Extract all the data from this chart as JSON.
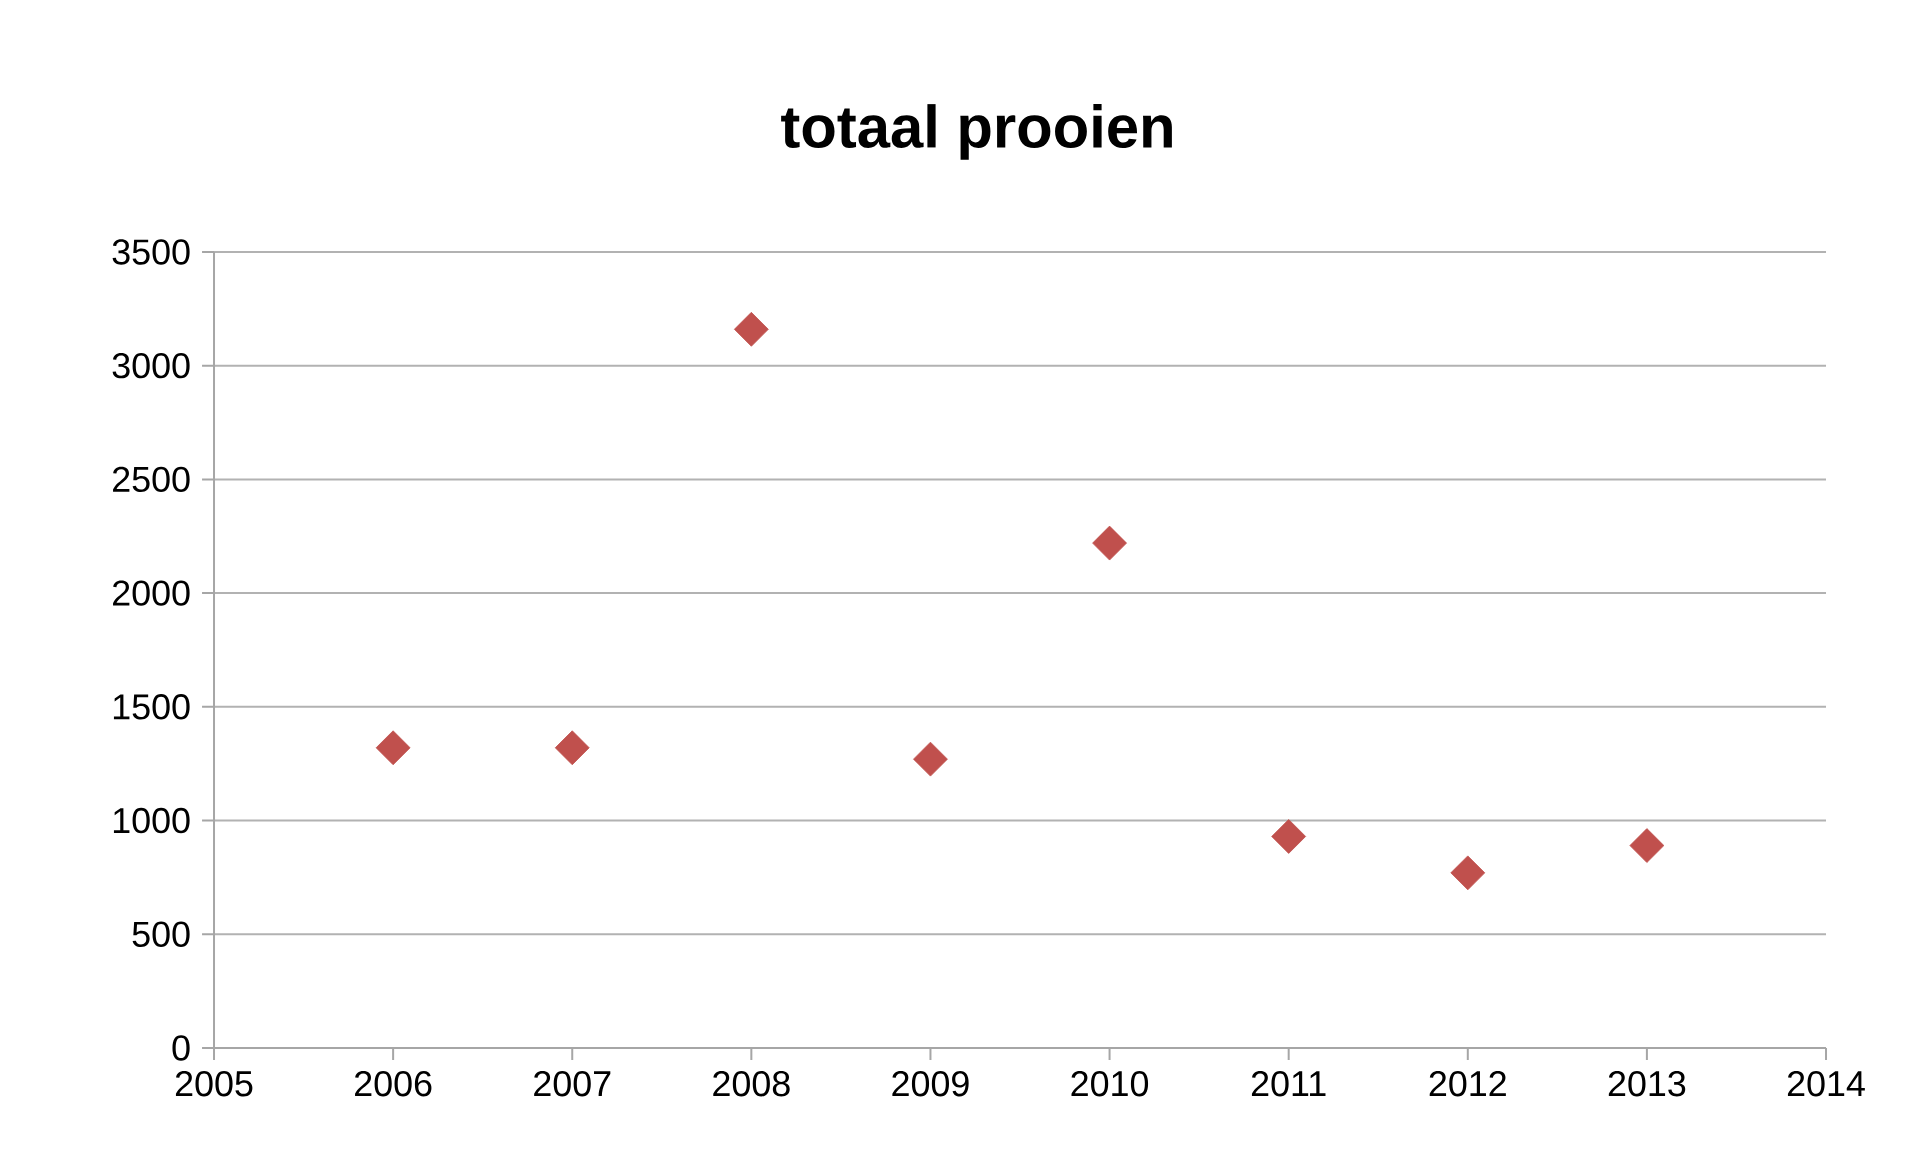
{
  "chart_data": {
    "type": "scatter",
    "title": "totaal prooien",
    "x": [
      2006,
      2007,
      2008,
      2009,
      2010,
      2011,
      2012,
      2013
    ],
    "values": [
      1320,
      1320,
      3160,
      1270,
      2220,
      930,
      770,
      890
    ],
    "color": "#c0504d",
    "marker": "diamond",
    "xlim": [
      2005,
      2014
    ],
    "ylim": [
      0,
      3500
    ],
    "xticks": [
      2005,
      2006,
      2007,
      2008,
      2009,
      2010,
      2011,
      2012,
      2013,
      2014
    ],
    "yticks": [
      0,
      500,
      1000,
      1500,
      2000,
      2500,
      3000,
      3500
    ],
    "grid": "y"
  }
}
